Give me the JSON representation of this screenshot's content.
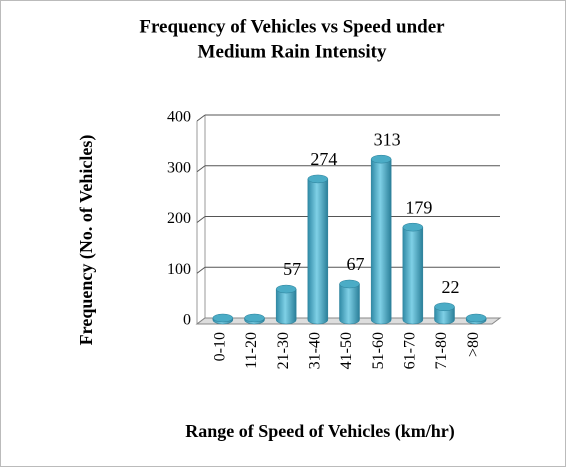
{
  "chart_data": {
    "type": "bar",
    "title": "Frequency of Vehicles vs Speed under Medium Rain Intensity",
    "title_lines": [
      "Frequency of Vehicles vs Speed under",
      "Medium Rain Intensity"
    ],
    "x_label": "Range of Speed of Vehicles (km/hr)",
    "y_label": "Frequency (No. of Vehicles)",
    "categories": [
      "0-10",
      "11-20",
      "21-30",
      "31-40",
      "41-50",
      "51-60",
      "61-70",
      "71-80",
      ">80"
    ],
    "values": [
      0,
      0,
      57,
      274,
      67,
      313,
      179,
      22,
      0
    ],
    "value_labels": [
      null,
      null,
      "57",
      "274",
      "67",
      "313",
      "179",
      "22",
      null
    ],
    "color": "#4bacc6",
    "ylim": [
      0,
      400
    ],
    "yticks": [
      0,
      100,
      200,
      300,
      400
    ],
    "grid": true
  }
}
